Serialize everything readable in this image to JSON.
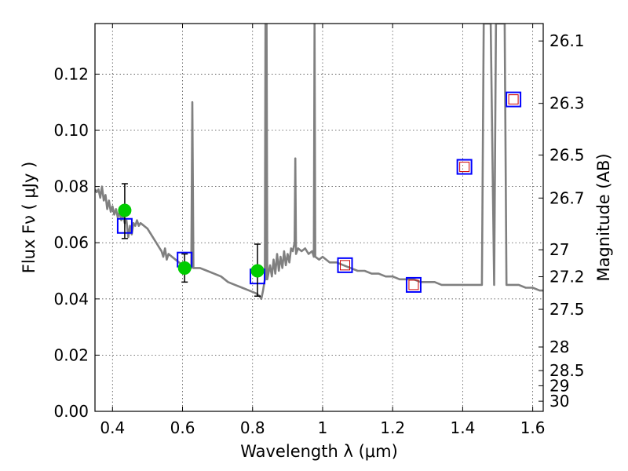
{
  "chart_data": {
    "type": "scatter",
    "xlabel": "Wavelength  λ (μm)",
    "ylabel": "Flux  Fν  ( μJy )",
    "y2label": "Magnitude (AB)",
    "xlim": [
      0.35,
      1.63
    ],
    "ylim": [
      0.0,
      0.138
    ],
    "grid": true,
    "x_ticks": [
      {
        "value": 0.4,
        "label": "0.4"
      },
      {
        "value": 0.6,
        "label": "0.6"
      },
      {
        "value": 0.8,
        "label": "0.8"
      },
      {
        "value": 1.0,
        "label": "1"
      },
      {
        "value": 1.2,
        "label": "1.2"
      },
      {
        "value": 1.4,
        "label": "1.4"
      },
      {
        "value": 1.6,
        "label": "1.6"
      }
    ],
    "y_ticks": [
      {
        "value": 0.0,
        "label": "0.00"
      },
      {
        "value": 0.02,
        "label": "0.02"
      },
      {
        "value": 0.04,
        "label": "0.04"
      },
      {
        "value": 0.06,
        "label": "0.06"
      },
      {
        "value": 0.08,
        "label": "0.08"
      },
      {
        "value": 0.1,
        "label": "0.10"
      },
      {
        "value": 0.12,
        "label": "0.12"
      }
    ],
    "y2_ticks": [
      {
        "flux": 0.1318,
        "label": "26.1"
      },
      {
        "flux": 0.1096,
        "label": "26.3"
      },
      {
        "flux": 0.0912,
        "label": "26.5"
      },
      {
        "flux": 0.0759,
        "label": "26.7"
      },
      {
        "flux": 0.0575,
        "label": "27"
      },
      {
        "flux": 0.0479,
        "label": "27.2"
      },
      {
        "flux": 0.0363,
        "label": "27.5"
      },
      {
        "flux": 0.0229,
        "label": "28"
      },
      {
        "flux": 0.0145,
        "label": "28.5"
      },
      {
        "flux": 0.0091,
        "label": "29"
      },
      {
        "flux": 0.0036,
        "label": "30"
      }
    ],
    "model_spectrum": {
      "color": "#808080",
      "points": [
        [
          0.35,
          0.079
        ],
        [
          0.355,
          0.078
        ],
        [
          0.36,
          0.079
        ],
        [
          0.365,
          0.076
        ],
        [
          0.37,
          0.08
        ],
        [
          0.375,
          0.075
        ],
        [
          0.38,
          0.077
        ],
        [
          0.385,
          0.072
        ],
        [
          0.39,
          0.075
        ],
        [
          0.395,
          0.071
        ],
        [
          0.4,
          0.073
        ],
        [
          0.405,
          0.07
        ],
        [
          0.41,
          0.072
        ],
        [
          0.415,
          0.069
        ],
        [
          0.42,
          0.071
        ],
        [
          0.425,
          0.068
        ],
        [
          0.43,
          0.07
        ],
        [
          0.435,
          0.067
        ],
        [
          0.44,
          0.068
        ],
        [
          0.445,
          0.062
        ],
        [
          0.45,
          0.066
        ],
        [
          0.455,
          0.063
        ],
        [
          0.46,
          0.067
        ],
        [
          0.465,
          0.066
        ],
        [
          0.47,
          0.068
        ],
        [
          0.475,
          0.066
        ],
        [
          0.48,
          0.067
        ],
        [
          0.49,
          0.066
        ],
        [
          0.5,
          0.065
        ],
        [
          0.51,
          0.063
        ],
        [
          0.52,
          0.061
        ],
        [
          0.53,
          0.059
        ],
        [
          0.535,
          0.058
        ],
        [
          0.54,
          0.057
        ],
        [
          0.545,
          0.055
        ],
        [
          0.55,
          0.058
        ],
        [
          0.555,
          0.054
        ],
        [
          0.56,
          0.056
        ],
        [
          0.57,
          0.055
        ],
        [
          0.58,
          0.054
        ],
        [
          0.59,
          0.053
        ],
        [
          0.6,
          0.052
        ],
        [
          0.61,
          0.052
        ],
        [
          0.62,
          0.051
        ],
        [
          0.625,
          0.051
        ],
        [
          0.628,
          0.11
        ],
        [
          0.631,
          0.051
        ],
        [
          0.64,
          0.051
        ],
        [
          0.65,
          0.051
        ],
        [
          0.67,
          0.05
        ],
        [
          0.69,
          0.049
        ],
        [
          0.71,
          0.048
        ],
        [
          0.73,
          0.046
        ],
        [
          0.75,
          0.045
        ],
        [
          0.77,
          0.044
        ],
        [
          0.79,
          0.043
        ],
        [
          0.81,
          0.042
        ],
        [
          0.82,
          0.041
        ],
        [
          0.825,
          0.04
        ],
        [
          0.83,
          0.043
        ],
        [
          0.835,
          0.047
        ],
        [
          0.837,
          0.138
        ],
        [
          0.838,
          0.047
        ],
        [
          0.84,
          0.138
        ],
        [
          0.842,
          0.047
        ],
        [
          0.85,
          0.052
        ],
        [
          0.855,
          0.048
        ],
        [
          0.86,
          0.054
        ],
        [
          0.865,
          0.049
        ],
        [
          0.87,
          0.056
        ],
        [
          0.875,
          0.05
        ],
        [
          0.88,
          0.055
        ],
        [
          0.885,
          0.051
        ],
        [
          0.89,
          0.057
        ],
        [
          0.895,
          0.052
        ],
        [
          0.9,
          0.056
        ],
        [
          0.905,
          0.053
        ],
        [
          0.91,
          0.058
        ],
        [
          0.915,
          0.057
        ],
        [
          0.92,
          0.06
        ],
        [
          0.922,
          0.09
        ],
        [
          0.924,
          0.056
        ],
        [
          0.93,
          0.058
        ],
        [
          0.94,
          0.057
        ],
        [
          0.95,
          0.058
        ],
        [
          0.96,
          0.056
        ],
        [
          0.97,
          0.057
        ],
        [
          0.975,
          0.055
        ],
        [
          0.977,
          0.138
        ],
        [
          0.979,
          0.055
        ],
        [
          0.99,
          0.054
        ],
        [
          1.0,
          0.055
        ],
        [
          1.02,
          0.053
        ],
        [
          1.04,
          0.053
        ],
        [
          1.06,
          0.052
        ],
        [
          1.08,
          0.051
        ],
        [
          1.1,
          0.05
        ],
        [
          1.12,
          0.05
        ],
        [
          1.14,
          0.049
        ],
        [
          1.16,
          0.049
        ],
        [
          1.18,
          0.048
        ],
        [
          1.2,
          0.048
        ],
        [
          1.22,
          0.047
        ],
        [
          1.24,
          0.047
        ],
        [
          1.26,
          0.047
        ],
        [
          1.28,
          0.046
        ],
        [
          1.3,
          0.046
        ],
        [
          1.32,
          0.046
        ],
        [
          1.34,
          0.045
        ],
        [
          1.36,
          0.045
        ],
        [
          1.38,
          0.045
        ],
        [
          1.4,
          0.045
        ],
        [
          1.42,
          0.045
        ],
        [
          1.44,
          0.045
        ],
        [
          1.455,
          0.045
        ],
        [
          1.46,
          0.138
        ],
        [
          1.465,
          0.138
        ],
        [
          1.47,
          0.138
        ],
        [
          1.48,
          0.138
        ],
        [
          1.49,
          0.045
        ],
        [
          1.495,
          0.138
        ],
        [
          1.5,
          0.138
        ],
        [
          1.51,
          0.138
        ],
        [
          1.515,
          0.138
        ],
        [
          1.52,
          0.138
        ],
        [
          1.525,
          0.045
        ],
        [
          1.54,
          0.045
        ],
        [
          1.56,
          0.045
        ],
        [
          1.58,
          0.044
        ],
        [
          1.6,
          0.044
        ],
        [
          1.62,
          0.043
        ],
        [
          1.63,
          0.043
        ]
      ]
    },
    "model_photometry": {
      "color_outer": "#0000ff",
      "color_inner": "#cc0000",
      "points": [
        {
          "x": 0.435,
          "y": 0.066,
          "inner": false
        },
        {
          "x": 0.606,
          "y": 0.054,
          "inner": false
        },
        {
          "x": 0.814,
          "y": 0.048,
          "inner": false
        },
        {
          "x": 1.064,
          "y": 0.052,
          "inner": true
        },
        {
          "x": 1.26,
          "y": 0.045,
          "inner": true
        },
        {
          "x": 1.405,
          "y": 0.087,
          "inner": true
        },
        {
          "x": 1.545,
          "y": 0.111,
          "inner": true
        }
      ]
    },
    "observed": {
      "color": "#00cc00",
      "points": [
        {
          "x": 0.435,
          "y": 0.0715,
          "yerr_low": 0.0615,
          "yerr_high": 0.081
        },
        {
          "x": 0.606,
          "y": 0.051,
          "yerr_low": 0.046,
          "yerr_high": 0.056
        },
        {
          "x": 0.814,
          "y": 0.05,
          "yerr_low": 0.041,
          "yerr_high": 0.0595
        }
      ]
    }
  }
}
